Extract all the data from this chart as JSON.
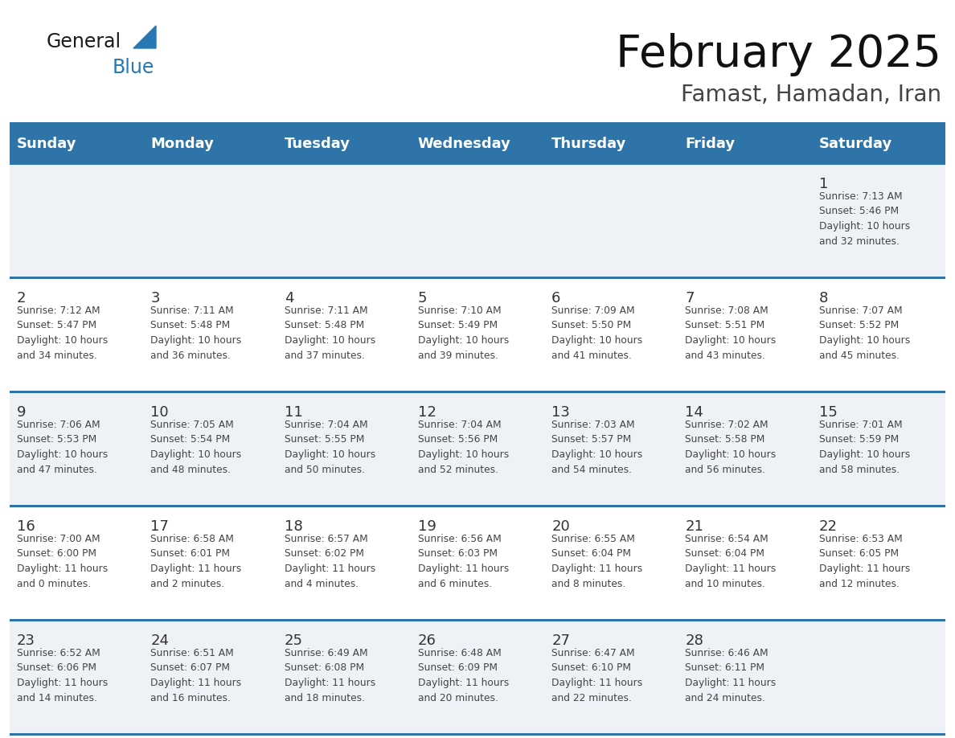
{
  "title": "February 2025",
  "subtitle": "Famast, Hamadan, Iran",
  "days_of_week": [
    "Sunday",
    "Monday",
    "Tuesday",
    "Wednesday",
    "Thursday",
    "Friday",
    "Saturday"
  ],
  "header_bg": "#2E74A8",
  "header_text_color": "#FFFFFF",
  "cell_bg_light": "#EEF2F7",
  "cell_bg_white": "#FFFFFF",
  "separator_color": "#2E74A8",
  "text_color": "#444444",
  "day_num_color": "#333333",
  "logo_general_color": "#1a1a1a",
  "logo_blue_color": "#2878B4",
  "title_color": "#111111",
  "subtitle_color": "#444444",
  "weeks": [
    [
      {
        "day": null,
        "info": null
      },
      {
        "day": null,
        "info": null
      },
      {
        "day": null,
        "info": null
      },
      {
        "day": null,
        "info": null
      },
      {
        "day": null,
        "info": null
      },
      {
        "day": null,
        "info": null
      },
      {
        "day": 1,
        "info": "Sunrise: 7:13 AM\nSunset: 5:46 PM\nDaylight: 10 hours\nand 32 minutes."
      }
    ],
    [
      {
        "day": 2,
        "info": "Sunrise: 7:12 AM\nSunset: 5:47 PM\nDaylight: 10 hours\nand 34 minutes."
      },
      {
        "day": 3,
        "info": "Sunrise: 7:11 AM\nSunset: 5:48 PM\nDaylight: 10 hours\nand 36 minutes."
      },
      {
        "day": 4,
        "info": "Sunrise: 7:11 AM\nSunset: 5:48 PM\nDaylight: 10 hours\nand 37 minutes."
      },
      {
        "day": 5,
        "info": "Sunrise: 7:10 AM\nSunset: 5:49 PM\nDaylight: 10 hours\nand 39 minutes."
      },
      {
        "day": 6,
        "info": "Sunrise: 7:09 AM\nSunset: 5:50 PM\nDaylight: 10 hours\nand 41 minutes."
      },
      {
        "day": 7,
        "info": "Sunrise: 7:08 AM\nSunset: 5:51 PM\nDaylight: 10 hours\nand 43 minutes."
      },
      {
        "day": 8,
        "info": "Sunrise: 7:07 AM\nSunset: 5:52 PM\nDaylight: 10 hours\nand 45 minutes."
      }
    ],
    [
      {
        "day": 9,
        "info": "Sunrise: 7:06 AM\nSunset: 5:53 PM\nDaylight: 10 hours\nand 47 minutes."
      },
      {
        "day": 10,
        "info": "Sunrise: 7:05 AM\nSunset: 5:54 PM\nDaylight: 10 hours\nand 48 minutes."
      },
      {
        "day": 11,
        "info": "Sunrise: 7:04 AM\nSunset: 5:55 PM\nDaylight: 10 hours\nand 50 minutes."
      },
      {
        "day": 12,
        "info": "Sunrise: 7:04 AM\nSunset: 5:56 PM\nDaylight: 10 hours\nand 52 minutes."
      },
      {
        "day": 13,
        "info": "Sunrise: 7:03 AM\nSunset: 5:57 PM\nDaylight: 10 hours\nand 54 minutes."
      },
      {
        "day": 14,
        "info": "Sunrise: 7:02 AM\nSunset: 5:58 PM\nDaylight: 10 hours\nand 56 minutes."
      },
      {
        "day": 15,
        "info": "Sunrise: 7:01 AM\nSunset: 5:59 PM\nDaylight: 10 hours\nand 58 minutes."
      }
    ],
    [
      {
        "day": 16,
        "info": "Sunrise: 7:00 AM\nSunset: 6:00 PM\nDaylight: 11 hours\nand 0 minutes."
      },
      {
        "day": 17,
        "info": "Sunrise: 6:58 AM\nSunset: 6:01 PM\nDaylight: 11 hours\nand 2 minutes."
      },
      {
        "day": 18,
        "info": "Sunrise: 6:57 AM\nSunset: 6:02 PM\nDaylight: 11 hours\nand 4 minutes."
      },
      {
        "day": 19,
        "info": "Sunrise: 6:56 AM\nSunset: 6:03 PM\nDaylight: 11 hours\nand 6 minutes."
      },
      {
        "day": 20,
        "info": "Sunrise: 6:55 AM\nSunset: 6:04 PM\nDaylight: 11 hours\nand 8 minutes."
      },
      {
        "day": 21,
        "info": "Sunrise: 6:54 AM\nSunset: 6:04 PM\nDaylight: 11 hours\nand 10 minutes."
      },
      {
        "day": 22,
        "info": "Sunrise: 6:53 AM\nSunset: 6:05 PM\nDaylight: 11 hours\nand 12 minutes."
      }
    ],
    [
      {
        "day": 23,
        "info": "Sunrise: 6:52 AM\nSunset: 6:06 PM\nDaylight: 11 hours\nand 14 minutes."
      },
      {
        "day": 24,
        "info": "Sunrise: 6:51 AM\nSunset: 6:07 PM\nDaylight: 11 hours\nand 16 minutes."
      },
      {
        "day": 25,
        "info": "Sunrise: 6:49 AM\nSunset: 6:08 PM\nDaylight: 11 hours\nand 18 minutes."
      },
      {
        "day": 26,
        "info": "Sunrise: 6:48 AM\nSunset: 6:09 PM\nDaylight: 11 hours\nand 20 minutes."
      },
      {
        "day": 27,
        "info": "Sunrise: 6:47 AM\nSunset: 6:10 PM\nDaylight: 11 hours\nand 22 minutes."
      },
      {
        "day": 28,
        "info": "Sunrise: 6:46 AM\nSunset: 6:11 PM\nDaylight: 11 hours\nand 24 minutes."
      },
      {
        "day": null,
        "info": null
      }
    ]
  ]
}
